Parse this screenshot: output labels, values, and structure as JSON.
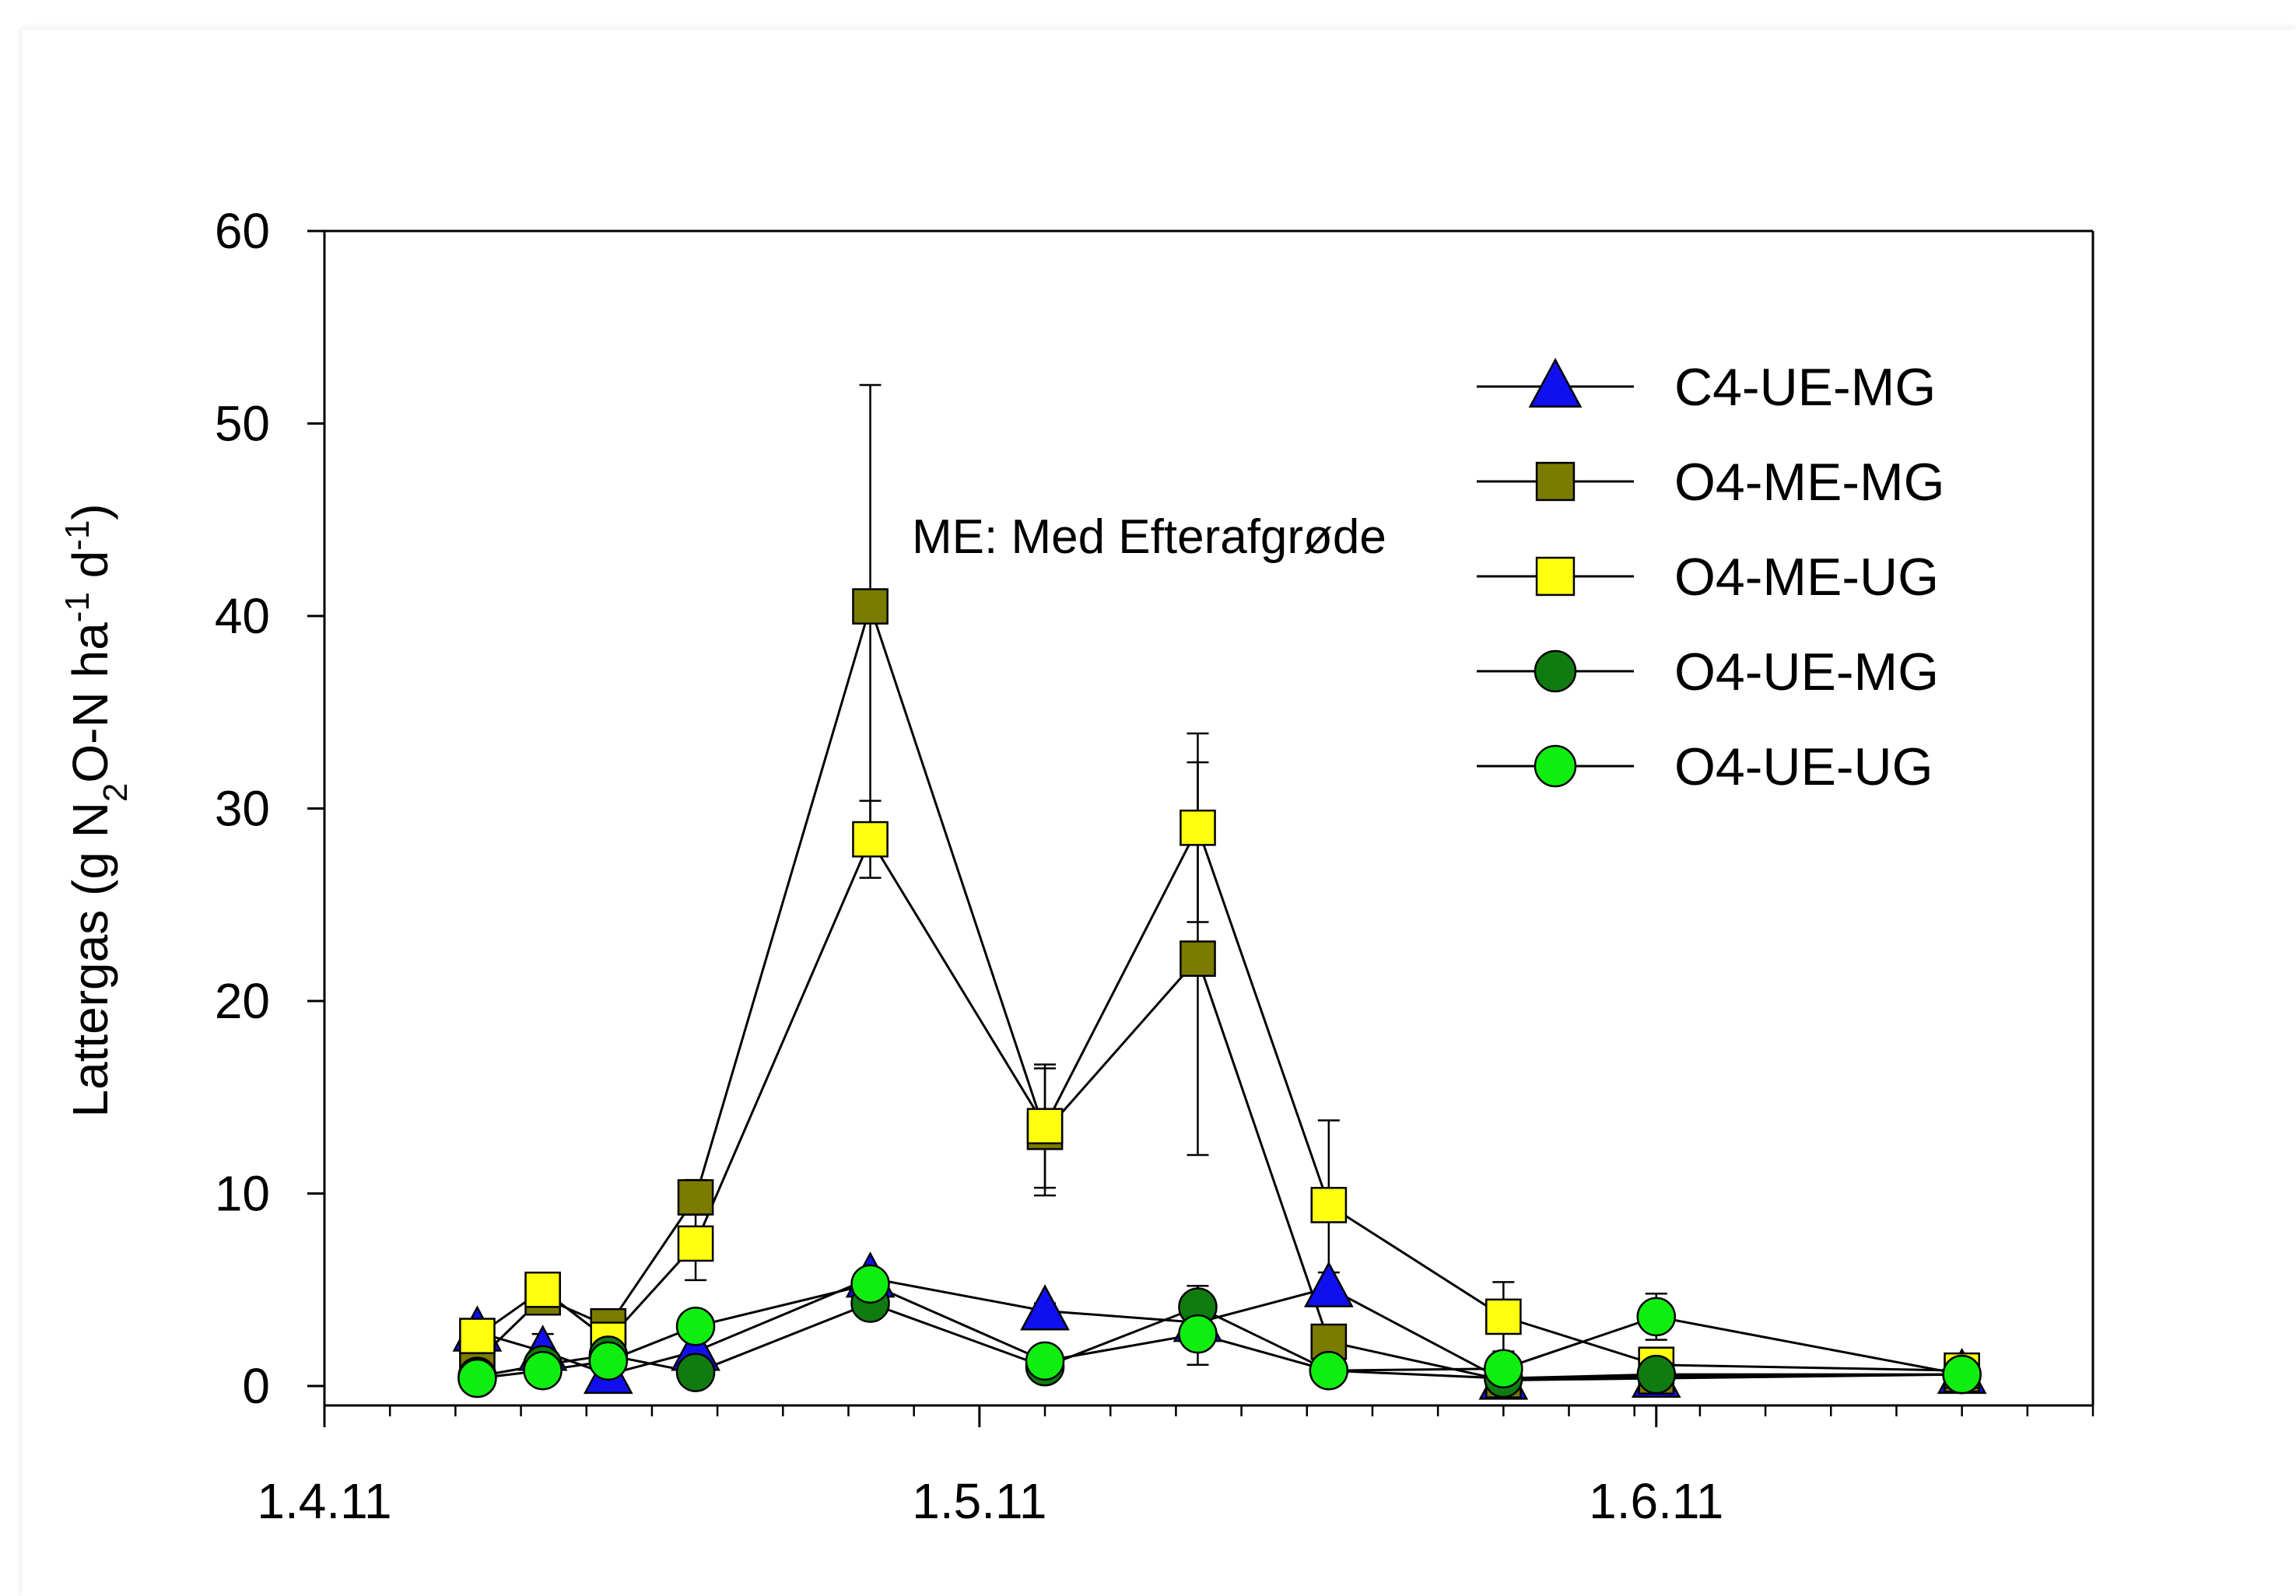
{
  "chart_data": {
    "type": "line",
    "title": "",
    "ylabel": {
      "main": "Lattergas (g N",
      "sub": "2",
      "mid": "O-N ha",
      "sup1": "-1",
      "end": " d",
      "sup2": "-1",
      "close": ")"
    },
    "xlabel": "",
    "ylim": [
      0,
      60
    ],
    "yticks": [
      "0",
      "10",
      "20",
      "30",
      "40",
      "50",
      "60"
    ],
    "ytick_values": [
      0,
      10,
      20,
      30,
      40,
      50,
      60
    ],
    "xlim": [
      "2011-04-01",
      "2011-06-21"
    ],
    "xticks": [
      {
        "date": "2011-04-01",
        "label": "1.4.11"
      },
      {
        "date": "2011-05-01",
        "label": "1.5.11"
      },
      {
        "date": "2011-06-01",
        "label": "1.6.11"
      }
    ],
    "x": [
      "2011-04-08",
      "2011-04-11",
      "2011-04-14",
      "2011-04-18",
      "2011-04-26",
      "2011-05-04",
      "2011-05-11",
      "2011-05-17",
      "2011-05-25",
      "2011-06-01",
      "2011-06-15"
    ],
    "annotation": "ME: Med Efterafgrøde",
    "legend_position": "top-right",
    "series": [
      {
        "name": "C4-UE-MG",
        "marker": "triangle",
        "color": "#1010ee",
        "values": [
          2.8,
          1.8,
          0.6,
          1.8,
          5.6,
          3.9,
          3.3,
          5.1,
          0.3,
          0.4,
          0.6
        ],
        "errors": [
          0.6,
          0.9,
          0.3,
          0.6,
          0.5,
          0.4,
          0.8,
          0.8,
          0.1,
          0.1,
          0.1
        ]
      },
      {
        "name": "O4-ME-MG",
        "marker": "square",
        "color": "#7b7b00",
        "values": [
          1.3,
          4.6,
          3.1,
          9.8,
          40.5,
          13.2,
          22.2,
          2.3,
          0.3,
          0.5,
          0.6
        ],
        "errors": [
          0.4,
          0.5,
          0.8,
          0.9,
          11.5,
          3.3,
          10.2,
          0.5,
          0.1,
          0.2,
          0.1
        ]
      },
      {
        "name": "O4-ME-UG",
        "marker": "square",
        "color": "#ffff10",
        "values": [
          2.6,
          5.0,
          2.4,
          7.4,
          28.4,
          13.5,
          29.0,
          9.4,
          3.6,
          1.1,
          0.8
        ],
        "errors": [
          0.5,
          0.5,
          0.6,
          1.9,
          2.0,
          3.2,
          4.9,
          4.4,
          1.8,
          0.3,
          0.2
        ]
      },
      {
        "name": "O4-UE-MG",
        "marker": "circle",
        "color": "#107b10",
        "values": [
          0.5,
          1.1,
          1.6,
          0.7,
          4.3,
          1.0,
          4.1,
          0.8,
          0.4,
          0.6,
          0.6
        ],
        "errors": [
          0.2,
          0.3,
          0.4,
          0.3,
          0.5,
          0.3,
          1.1,
          0.2,
          0.1,
          0.2,
          0.1
        ]
      },
      {
        "name": "O4-UE-UG",
        "marker": "circle",
        "color": "#10ee10",
        "values": [
          0.4,
          0.8,
          1.3,
          3.1,
          5.3,
          1.3,
          2.7,
          0.8,
          0.9,
          3.6,
          0.6
        ],
        "errors": [
          0.2,
          0.3,
          0.4,
          0.5,
          0.6,
          0.3,
          1.6,
          0.2,
          0.3,
          1.2,
          0.1
        ]
      }
    ]
  }
}
